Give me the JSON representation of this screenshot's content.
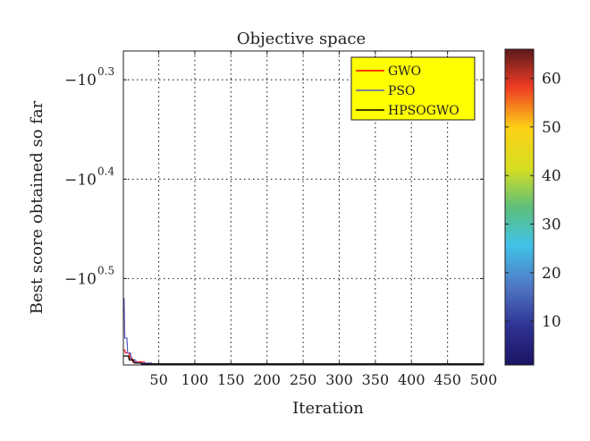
{
  "chart_data": {
    "type": "line",
    "title": "Objective space",
    "xlabel": "Iteration",
    "ylabel": "Best score obtained so far",
    "xlim": [
      1,
      500
    ],
    "x_ticks": [
      50,
      100,
      150,
      200,
      250,
      300,
      350,
      400,
      450,
      500
    ],
    "y_scale": "negative-log",
    "y_ticks": [
      {
        "exponent": 0.3,
        "label": "−10",
        "power": "0.3"
      },
      {
        "exponent": 0.4,
        "label": "−10",
        "power": "0.4"
      },
      {
        "exponent": 0.5,
        "label": "−10",
        "power": "0.5"
      }
    ],
    "y_exponent_range": [
      0.271,
      0.587
    ],
    "grid": true,
    "legend_position": "top-right",
    "legend_background": "#ffff00",
    "series": [
      {
        "name": "GWO",
        "color": "#ff0000",
        "points": [
          [
            1,
            0.572
          ],
          [
            3,
            0.572
          ],
          [
            4,
            0.575
          ],
          [
            9,
            0.575
          ],
          [
            10,
            0.58
          ],
          [
            13,
            0.58
          ],
          [
            14,
            0.584
          ],
          [
            30,
            0.584
          ],
          [
            31,
            0.586
          ],
          [
            500,
            0.586
          ]
        ]
      },
      {
        "name": "PSO",
        "color": "#5a5ac8",
        "points": [
          [
            1,
            0.52
          ],
          [
            2,
            0.52
          ],
          [
            3,
            0.56
          ],
          [
            6,
            0.56
          ],
          [
            7,
            0.575
          ],
          [
            11,
            0.575
          ],
          [
            12,
            0.582
          ],
          [
            18,
            0.582
          ],
          [
            19,
            0.585
          ],
          [
            40,
            0.585
          ],
          [
            41,
            0.586
          ],
          [
            500,
            0.586
          ]
        ]
      },
      {
        "name": "HPSOGWO",
        "color": "#000000",
        "points": [
          [
            1,
            0.578
          ],
          [
            8,
            0.578
          ],
          [
            9,
            0.582
          ],
          [
            15,
            0.582
          ],
          [
            16,
            0.585
          ],
          [
            25,
            0.585
          ],
          [
            26,
            0.586
          ],
          [
            500,
            0.586
          ]
        ]
      }
    ],
    "colorbar": {
      "range": [
        1,
        66
      ],
      "ticks": [
        10,
        20,
        30,
        40,
        50,
        60
      ],
      "colormap": "jet"
    }
  }
}
